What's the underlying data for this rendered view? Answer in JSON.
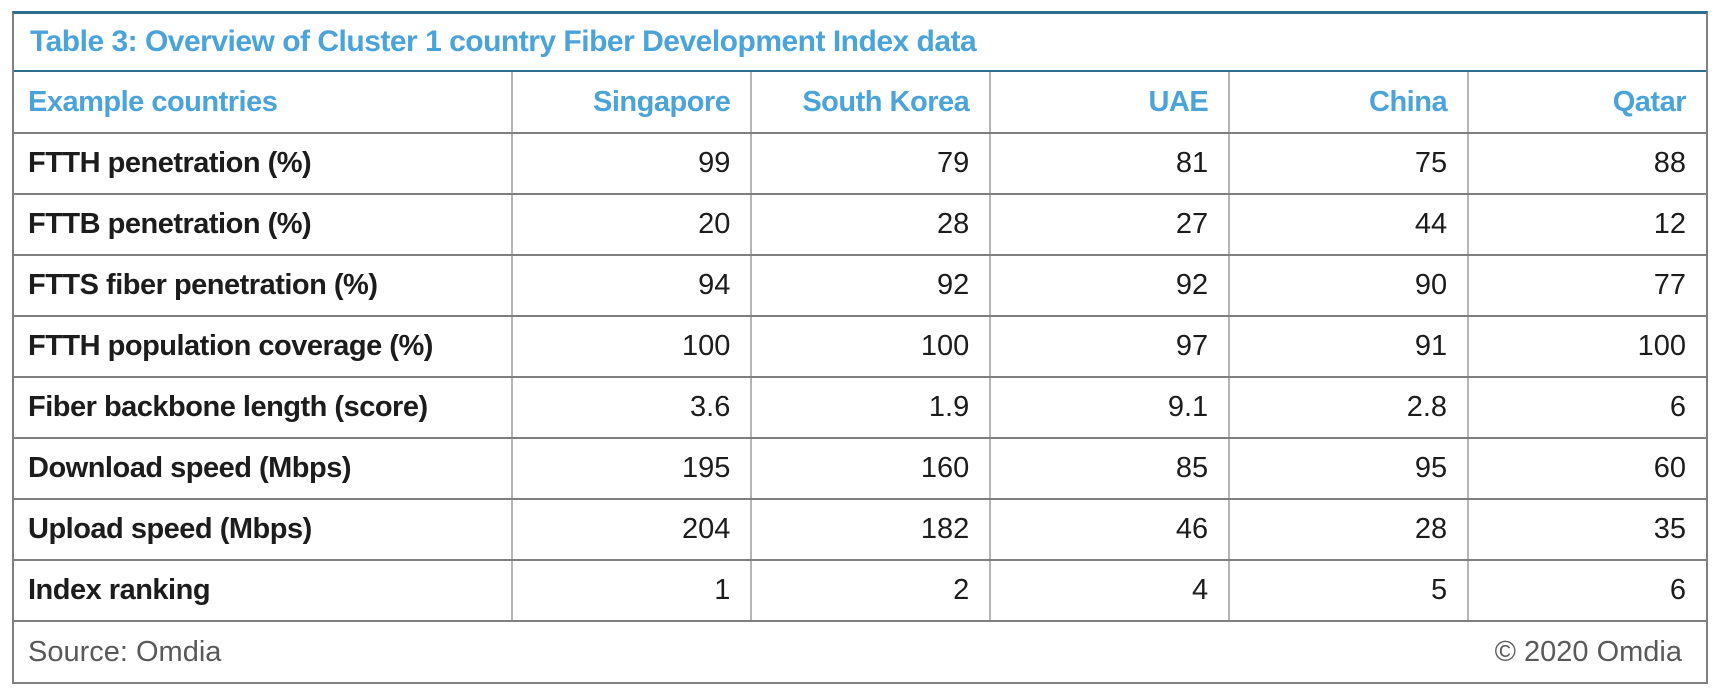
{
  "title": "Table 3: Overview of Cluster 1 country Fiber Development Index data",
  "table": {
    "header": [
      "Example countries",
      "Singapore",
      "South Korea",
      "UAE",
      "China",
      "Qatar"
    ],
    "rows": [
      {
        "label": "FTTH penetration (%)",
        "values": [
          "99",
          "79",
          "81",
          "75",
          "88"
        ]
      },
      {
        "label": "FTTB penetration (%)",
        "values": [
          "20",
          "28",
          "27",
          "44",
          "12"
        ]
      },
      {
        "label": "FTTS fiber penetration (%)",
        "values": [
          "94",
          "92",
          "92",
          "90",
          "77"
        ]
      },
      {
        "label": "FTTH population coverage (%)",
        "values": [
          "100",
          "100",
          "97",
          "91",
          "100"
        ]
      },
      {
        "label": "Fiber backbone length (score)",
        "values": [
          "3.6",
          "1.9",
          "9.1",
          "2.8",
          "6"
        ]
      },
      {
        "label": "Download speed (Mbps)",
        "values": [
          "195",
          "160",
          "85",
          "95",
          "60"
        ]
      },
      {
        "label": "Upload speed (Mbps)",
        "values": [
          "204",
          "182",
          "46",
          "28",
          "35"
        ]
      },
      {
        "label": "Index ranking",
        "values": [
          "1",
          "2",
          "4",
          "5",
          "6"
        ]
      }
    ]
  },
  "footer": {
    "source": "Source: Omdia",
    "copyright": "© 2020 Omdia"
  },
  "colors": {
    "accent_blue": "#4aa3d9",
    "teal_border": "#2d6e8e",
    "row_line": "#7f7f7f",
    "column_line": "#b5b5b5",
    "body_text": "#1c1c1c",
    "footer_text": "#595959"
  },
  "chart_data": {
    "type": "table",
    "title": "Table 3: Overview of Cluster 1 country Fiber Development Index data",
    "columns": [
      "Example countries",
      "Singapore",
      "South Korea",
      "UAE",
      "China",
      "Qatar"
    ],
    "rows": [
      [
        "FTTH penetration (%)",
        99,
        79,
        81,
        75,
        88
      ],
      [
        "FTTB penetration (%)",
        20,
        28,
        27,
        44,
        12
      ],
      [
        "FTTS fiber penetration (%)",
        94,
        92,
        92,
        90,
        77
      ],
      [
        "FTTH population coverage (%)",
        100,
        100,
        97,
        91,
        100
      ],
      [
        "Fiber backbone length (score)",
        3.6,
        1.9,
        9.1,
        2.8,
        6
      ],
      [
        "Download speed (Mbps)",
        195,
        160,
        85,
        95,
        60
      ],
      [
        "Upload speed (Mbps)",
        204,
        182,
        46,
        28,
        35
      ],
      [
        "Index ranking",
        1,
        2,
        4,
        5,
        6
      ]
    ],
    "source": "Omdia",
    "copyright": "© 2020 Omdia"
  }
}
